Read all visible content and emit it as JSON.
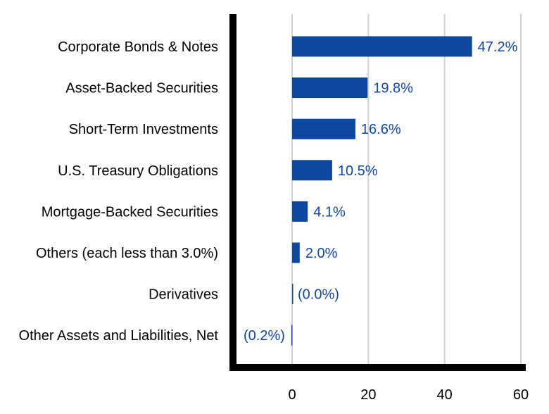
{
  "colors": {
    "bar": "#0d47a1",
    "label": "#0d47a1",
    "grid": "#d0d0d0",
    "axis": "#000000"
  },
  "chart_data": {
    "type": "bar",
    "orientation": "horizontal",
    "categories": [
      "Corporate Bonds & Notes",
      "Asset-Backed Securities",
      "Short-Term Investments",
      "U.S. Treasury Obligations",
      "Mortgage-Backed Securities",
      "Others (each less than 3.0%)",
      "Derivatives",
      "Other Assets and Liabilities, Net"
    ],
    "values": [
      47.2,
      19.8,
      16.6,
      10.5,
      4.1,
      2.0,
      0.0,
      -0.2
    ],
    "data_labels": [
      "47.2%",
      "19.8%",
      "16.6%",
      "10.5%",
      "4.1%",
      "2.0%",
      "(0.0%)",
      "(0.2%)"
    ],
    "xlim": [
      -16,
      60
    ],
    "xticks": [
      0,
      20,
      40,
      60
    ],
    "xtick_labels": [
      "0",
      "20",
      "40",
      "60"
    ],
    "grid": true,
    "legend": "none"
  }
}
